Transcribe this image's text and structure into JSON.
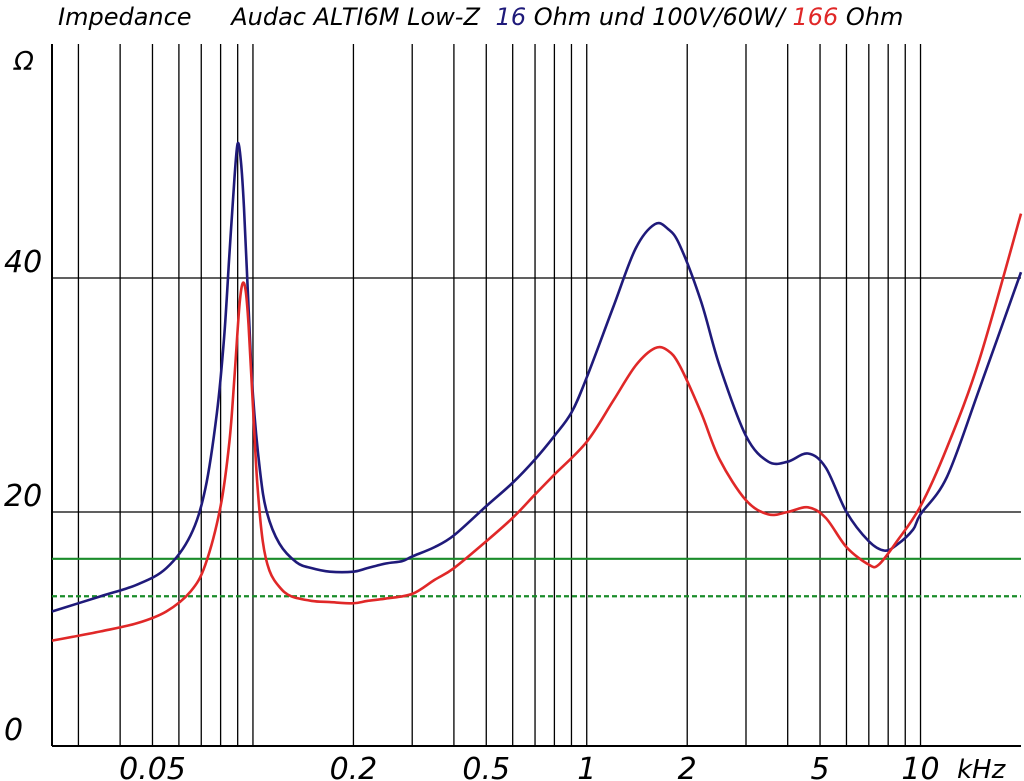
{
  "chart_data": {
    "type": "line",
    "title": {
      "prefix": "Impedance",
      "model": "Audac ALTI6M Low-Z",
      "blue_value": "16",
      "blue_suffix": "Ohm und 100V/60W/",
      "red_value": "166",
      "red_suffix": "Ohm"
    },
    "ylabel": "Ω",
    "xlabel": "kHz",
    "x_scale": "log",
    "xlim": [
      0.025,
      20
    ],
    "ylim": [
      0,
      60
    ],
    "y_ticks": [
      {
        "value": 0,
        "label": "0"
      },
      {
        "value": 20,
        "label": "20"
      },
      {
        "value": 40,
        "label": "40"
      }
    ],
    "x_tick_labels": [
      {
        "value": 0.05,
        "label": "0.05"
      },
      {
        "value": 0.2,
        "label": "0.2"
      },
      {
        "value": 0.5,
        "label": "0.5"
      },
      {
        "value": 1,
        "label": "1"
      },
      {
        "value": 2,
        "label": "2"
      },
      {
        "value": 5,
        "label": "5"
      },
      {
        "value": 10,
        "label": "10"
      }
    ],
    "x_gridlines": [
      0.03,
      0.04,
      0.05,
      0.06,
      0.07,
      0.08,
      0.09,
      0.1,
      0.2,
      0.3,
      0.4,
      0.5,
      0.6,
      0.7,
      0.8,
      0.9,
      1,
      2,
      3,
      4,
      5,
      6,
      7,
      8,
      9,
      10
    ],
    "y_gridlines": [
      20,
      40
    ],
    "grid": true,
    "reference_lines": [
      {
        "value": 16,
        "color": "#1a8c2a",
        "style": "solid"
      },
      {
        "value": 12.8,
        "color": "#1a8c2a",
        "style": "dashed"
      }
    ],
    "series": [
      {
        "color": "#1f1a7a",
        "x": [
          0.025,
          0.035,
          0.045,
          0.055,
          0.065,
          0.072,
          0.078,
          0.082,
          0.085,
          0.088,
          0.09,
          0.092,
          0.094,
          0.097,
          0.1,
          0.105,
          0.11,
          0.12,
          0.135,
          0.15,
          0.17,
          0.2,
          0.22,
          0.25,
          0.28,
          0.3,
          0.35,
          0.4,
          0.5,
          0.6,
          0.7,
          0.8,
          0.9,
          1.0,
          1.2,
          1.4,
          1.6,
          1.75,
          1.9,
          2.2,
          2.5,
          3.0,
          3.5,
          4.0,
          4.6,
          5.2,
          6.0,
          7.0,
          7.8,
          8.5,
          9.5,
          10.0,
          12,
          15,
          20
        ],
        "y": [
          11.5,
          12.8,
          13.8,
          15.2,
          18.0,
          22.0,
          28.5,
          35.0,
          42.0,
          48.5,
          51.5,
          50.0,
          46.0,
          37.5,
          30.0,
          23.5,
          20.0,
          17.3,
          15.7,
          15.2,
          14.9,
          14.9,
          15.2,
          15.6,
          15.8,
          16.2,
          17.0,
          18.0,
          20.5,
          22.5,
          24.5,
          26.5,
          28.5,
          31.5,
          37.5,
          42.5,
          44.6,
          44.2,
          42.8,
          38.0,
          32.5,
          26.5,
          24.3,
          24.3,
          25.0,
          23.8,
          20.0,
          17.5,
          16.7,
          17.2,
          18.5,
          19.8,
          23.0,
          30.5,
          40.5
        ]
      },
      {
        "color": "#e02828",
        "x": [
          0.025,
          0.035,
          0.045,
          0.055,
          0.065,
          0.072,
          0.08,
          0.085,
          0.088,
          0.091,
          0.093,
          0.095,
          0.097,
          0.1,
          0.103,
          0.107,
          0.112,
          0.12,
          0.13,
          0.15,
          0.17,
          0.2,
          0.22,
          0.25,
          0.3,
          0.35,
          0.4,
          0.5,
          0.6,
          0.7,
          0.8,
          1.0,
          1.2,
          1.4,
          1.6,
          1.75,
          1.9,
          2.2,
          2.5,
          3.0,
          3.5,
          4.0,
          4.6,
          5.2,
          6.0,
          7.0,
          7.5,
          8.5,
          10.0,
          12,
          15,
          20
        ],
        "y": [
          9.0,
          9.8,
          10.5,
          11.5,
          13.2,
          15.5,
          20.5,
          26.0,
          31.5,
          37.5,
          39.5,
          39.0,
          36.0,
          29.0,
          22.5,
          17.5,
          15.0,
          13.6,
          12.8,
          12.4,
          12.3,
          12.2,
          12.4,
          12.6,
          13.0,
          14.2,
          15.2,
          17.5,
          19.5,
          21.5,
          23.2,
          26.0,
          29.5,
          32.5,
          34.0,
          33.8,
          32.5,
          28.5,
          24.5,
          21.0,
          19.8,
          20.0,
          20.4,
          19.5,
          17.0,
          15.5,
          15.5,
          17.5,
          20.5,
          25.5,
          33.0,
          45.5
        ]
      }
    ]
  }
}
